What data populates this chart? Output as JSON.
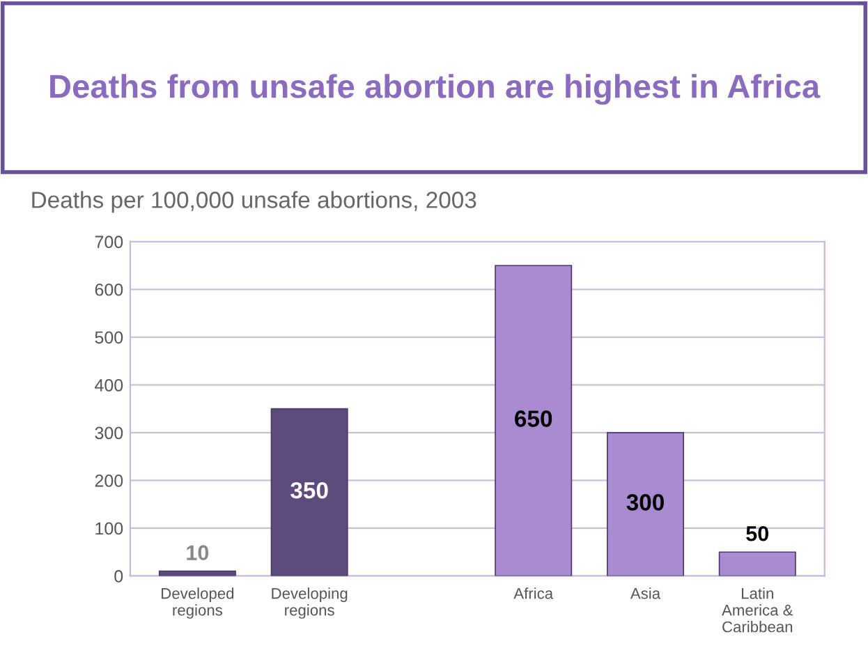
{
  "chart_data": {
    "type": "bar",
    "title": "Deaths from unsafe abortion are highest in Africa",
    "subtitle": "Deaths per 100,000 unsafe abortions, 2003",
    "categories": [
      "Developed\nregions",
      "Developing\nregions",
      null,
      "Africa",
      "Asia",
      "Latin\nAmerica &\nCaribbean"
    ],
    "values": [
      10,
      350,
      null,
      650,
      300,
      50
    ],
    "colors": [
      "#5e4b7d",
      "#5e4b7d",
      "#a98bd1",
      "#a98bd1",
      "#a98bd1",
      "#a98bd1"
    ],
    "ylim": [
      0,
      700
    ],
    "yticks": [
      0,
      100,
      200,
      300,
      400,
      500,
      600,
      700
    ],
    "grid": "y",
    "data_labels": true
  }
}
